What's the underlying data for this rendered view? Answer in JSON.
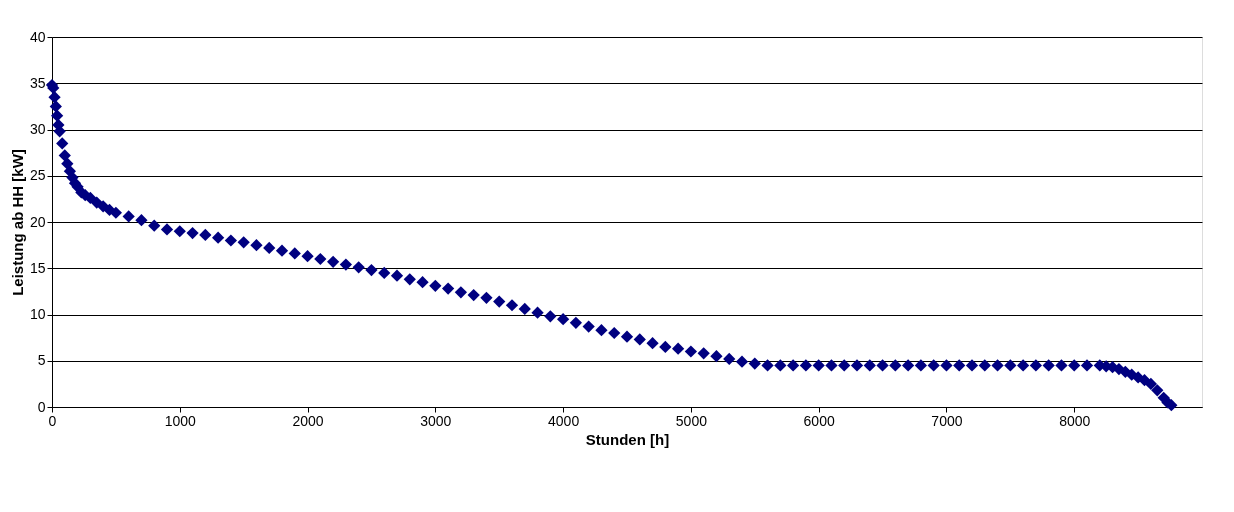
{
  "chart_data": {
    "type": "scatter",
    "xlabel": "Stunden [h]",
    "ylabel": "Leistung ab HH [kW]",
    "x": [
      0,
      10,
      20,
      30,
      40,
      50,
      60,
      80,
      100,
      120,
      140,
      160,
      180,
      200,
      230,
      260,
      300,
      350,
      400,
      450,
      500,
      600,
      700,
      800,
      900,
      1000,
      1100,
      1200,
      1300,
      1400,
      1500,
      1600,
      1700,
      1800,
      1900,
      2000,
      2100,
      2200,
      2300,
      2400,
      2500,
      2600,
      2700,
      2800,
      2900,
      3000,
      3100,
      3200,
      3300,
      3400,
      3500,
      3600,
      3700,
      3800,
      3900,
      4000,
      4100,
      4200,
      4300,
      4400,
      4500,
      4600,
      4700,
      4800,
      4900,
      5000,
      5100,
      5200,
      5300,
      5400,
      5500,
      5600,
      5700,
      5800,
      5900,
      6000,
      6100,
      6200,
      6300,
      6400,
      6500,
      6600,
      6700,
      6800,
      6900,
      7000,
      7100,
      7200,
      7300,
      7400,
      7500,
      7600,
      7700,
      7800,
      7900,
      8000,
      8100,
      8200,
      8250,
      8300,
      8350,
      8400,
      8450,
      8500,
      8550,
      8600,
      8650,
      8700,
      8730,
      8760
    ],
    "series": [
      {
        "color": "#000080",
        "values": [
          34.8,
          34.5,
          33.5,
          32.5,
          31.5,
          30.5,
          29.8,
          28.5,
          27.2,
          26.3,
          25.5,
          24.8,
          24.2,
          23.8,
          23.2,
          22.9,
          22.6,
          22.1,
          21.7,
          21.3,
          21.0,
          20.6,
          20.2,
          19.6,
          19.2,
          19.0,
          18.8,
          18.6,
          18.3,
          18.0,
          17.8,
          17.5,
          17.2,
          16.9,
          16.6,
          16.3,
          16.0,
          15.7,
          15.4,
          15.1,
          14.8,
          14.5,
          14.2,
          13.8,
          13.5,
          13.1,
          12.8,
          12.4,
          12.1,
          11.8,
          11.4,
          11.0,
          10.6,
          10.2,
          9.8,
          9.5,
          9.1,
          8.7,
          8.3,
          8.0,
          7.6,
          7.3,
          6.9,
          6.5,
          6.3,
          6.0,
          5.8,
          5.5,
          5.2,
          4.9,
          4.7,
          4.5,
          4.5,
          4.5,
          4.5,
          4.5,
          4.5,
          4.5,
          4.5,
          4.5,
          4.5,
          4.5,
          4.5,
          4.5,
          4.5,
          4.5,
          4.5,
          4.5,
          4.5,
          4.5,
          4.5,
          4.5,
          4.5,
          4.5,
          4.5,
          4.5,
          4.5,
          4.5,
          4.4,
          4.3,
          4.1,
          3.8,
          3.5,
          3.2,
          2.9,
          2.5,
          1.8,
          1.0,
          0.5,
          0.2
        ]
      }
    ],
    "xlim": [
      0,
      9000
    ],
    "xticks": [
      0,
      1000,
      2000,
      3000,
      4000,
      5000,
      6000,
      7000,
      8000
    ],
    "ylim": [
      0,
      40
    ],
    "yticks": [
      0,
      5,
      10,
      15,
      20,
      25,
      30,
      35,
      40
    ],
    "grid": "y",
    "marker": "diamond"
  }
}
